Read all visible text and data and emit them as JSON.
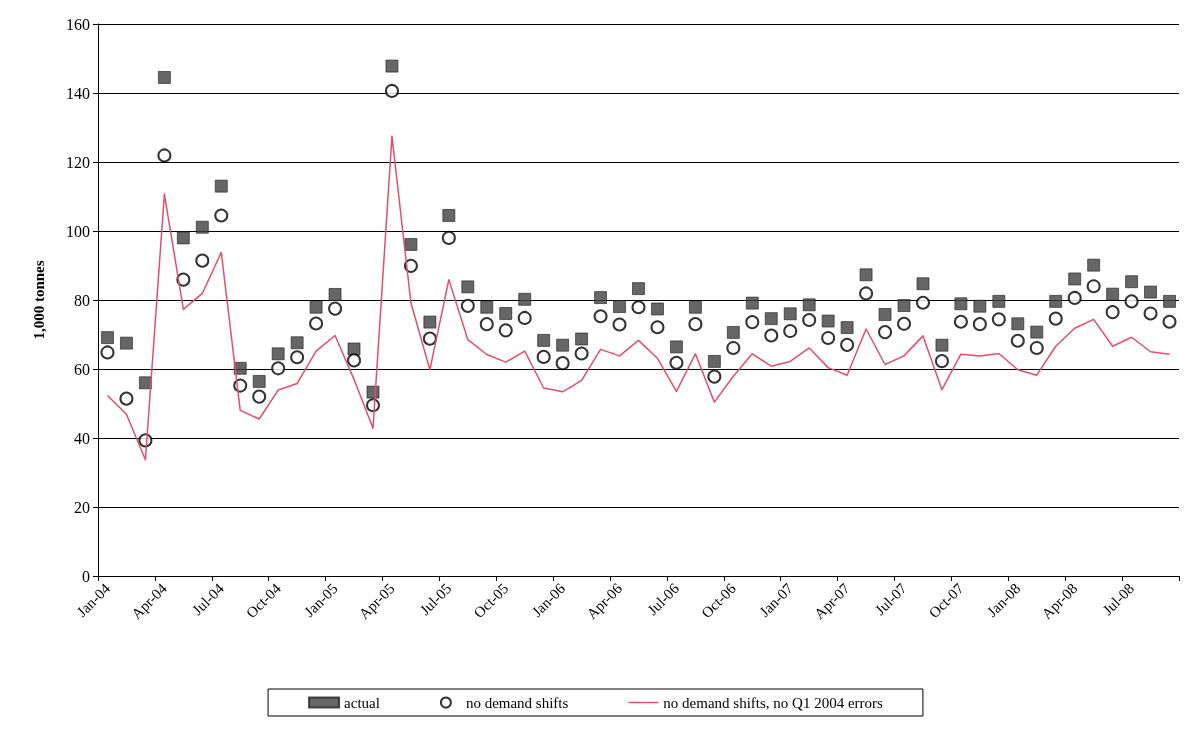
{
  "chart_data": {
    "type": "scatter",
    "ylabel": "1,000 tonnes",
    "categories": [
      "Jan-04",
      null,
      null,
      "Apr-04",
      null,
      null,
      "Jul-04",
      null,
      null,
      "Oct-04",
      null,
      null,
      "Jan-05",
      null,
      null,
      "Apr-05",
      null,
      null,
      "Jul-05",
      null,
      null,
      "Oct-05",
      null,
      null,
      "Jan-06",
      null,
      null,
      "Apr-06",
      null,
      null,
      "Jul-06",
      null,
      null,
      "Oct-06",
      null,
      null,
      "Jan-07",
      null,
      null,
      "Apr-07",
      null,
      null,
      "Jul-07",
      null,
      null,
      "Oct-07",
      null,
      null,
      "Jan-08",
      null,
      null,
      "Apr-08",
      null,
      null,
      "Jul-08",
      null,
      null
    ],
    "series": [
      {
        "name": "actual",
        "marker": "square",
        "color": "#404040",
        "values": [
          69.1,
          67.5,
          56.0,
          144.5,
          98.0,
          101.1,
          113.0,
          60.2,
          56.4,
          64.4,
          67.6,
          77.9,
          81.6,
          65.8,
          53.3,
          147.8,
          96.1,
          73.6,
          104.5,
          83.8,
          77.9,
          76.1,
          80.2,
          68.3,
          66.9,
          68.7,
          80.7,
          78.1,
          83.3,
          77.4,
          66.4,
          77.9,
          62.2,
          70.6,
          79.1,
          74.6,
          76.0,
          78.6,
          73.9,
          72.0,
          87.3,
          75.8,
          78.4,
          84.7,
          66.9,
          78.9,
          78.2,
          79.6,
          73.1,
          70.7,
          79.6,
          86.1,
          90.1,
          81.7,
          85.3,
          82.3,
          79.6
        ]
      },
      {
        "name": "no demand shifts",
        "marker": "circle",
        "color": "#000000",
        "values": [
          64.8,
          51.4,
          39.3,
          121.9,
          85.9,
          91.4,
          104.5,
          55.2,
          52.0,
          60.2,
          63.4,
          73.2,
          77.5,
          62.5,
          49.5,
          140.6,
          89.9,
          68.8,
          98.0,
          78.3,
          73.0,
          71.2,
          74.8,
          63.5,
          61.7,
          64.5,
          75.3,
          72.9,
          77.9,
          72.1,
          61.8,
          73.0,
          57.8,
          66.1,
          73.6,
          69.7,
          71.0,
          74.2,
          69.0,
          67.0,
          81.9,
          70.7,
          73.1,
          79.2,
          62.3,
          73.7,
          73.0,
          74.4,
          68.2,
          66.1,
          74.6,
          80.6,
          84.0,
          76.5,
          79.6,
          76.1,
          73.7
        ]
      },
      {
        "name": "no demand shifts, no Q1 2004 errors",
        "type": "line",
        "marker": "none",
        "color": "#e0506a",
        "values": [
          52.3,
          46.9,
          33.7,
          110.7,
          77.3,
          81.9,
          93.8,
          48.0,
          45.5,
          53.9,
          55.8,
          65.2,
          69.7,
          57.0,
          42.8,
          127.5,
          79.2,
          59.8,
          85.9,
          68.5,
          64.2,
          62.0,
          65.2,
          54.5,
          53.4,
          56.7,
          65.7,
          63.8,
          68.3,
          63.1,
          53.5,
          64.4,
          50.4,
          57.9,
          64.4,
          60.8,
          62.2,
          66.1,
          60.4,
          58.2,
          71.6,
          61.3,
          63.8,
          69.6,
          54.0,
          64.3,
          63.8,
          64.5,
          59.8,
          58.2,
          66.6,
          71.8,
          74.4,
          66.6,
          69.2,
          65.0,
          64.3
        ]
      }
    ],
    "ylim": [
      0,
      160
    ],
    "yticks": [
      0,
      20,
      40,
      60,
      80,
      100,
      120,
      140,
      160
    ],
    "grid": "y",
    "legend": "bottom"
  }
}
